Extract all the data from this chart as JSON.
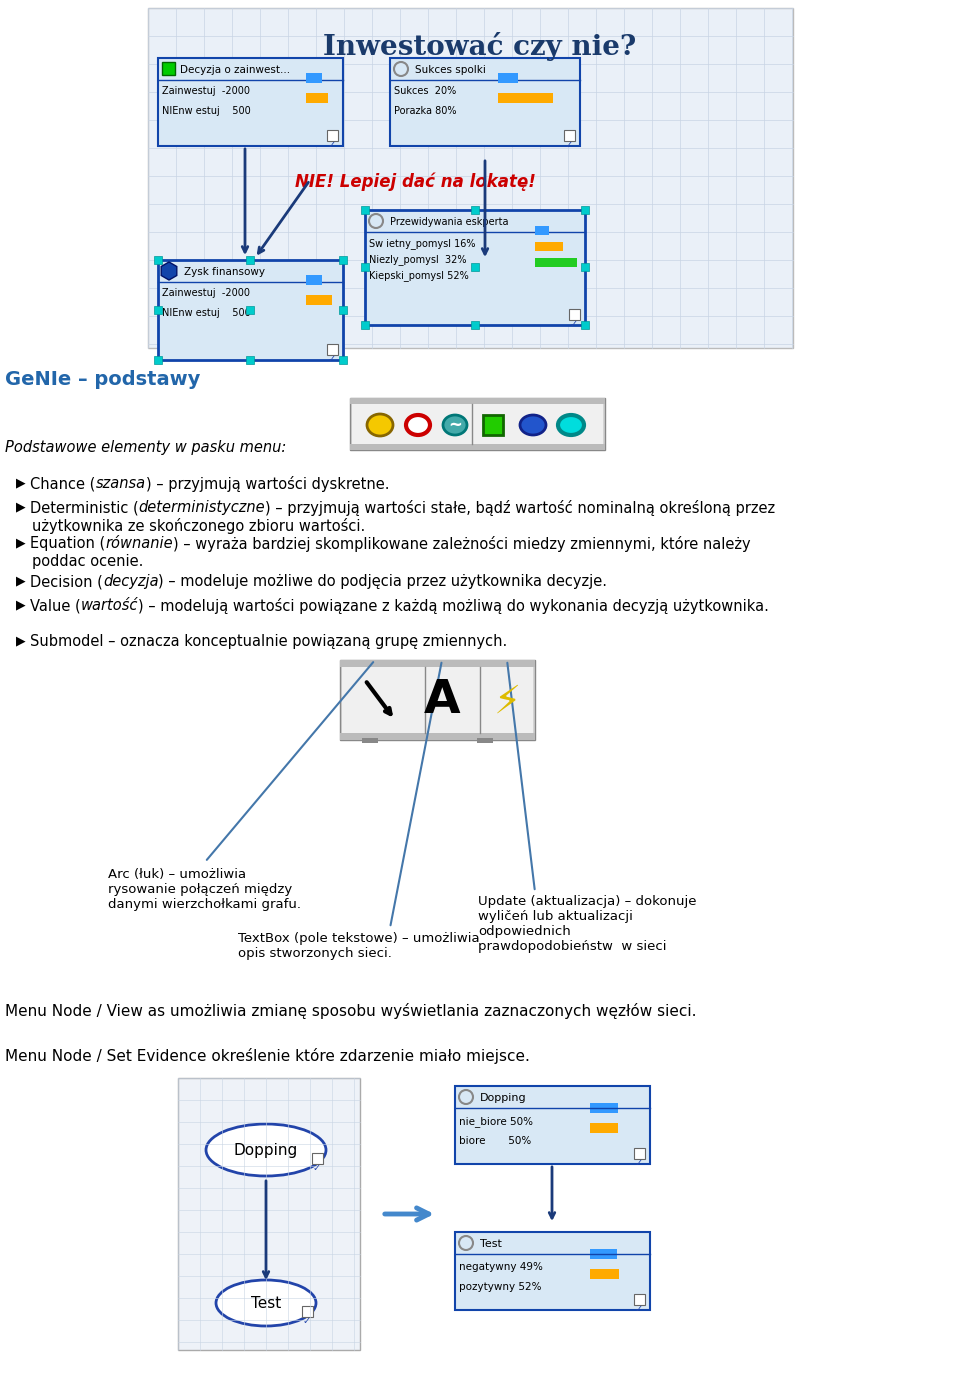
{
  "title": "Inwestować czy nie?",
  "title_color": "#1a3a6b",
  "section2_title": "GeNIe – podstawy",
  "section2_color": "#2266aa",
  "menu_text": "Podstawowe elementy w pasku menu:",
  "bullet_items": [
    [
      "Chance (",
      "szansa",
      ") – przyjmują wartości dyskretne."
    ],
    [
      "Deterministic (",
      "deterministyczne",
      ") – przyjmują wartości stałe, bądź wartość nominalną określoną przez\nużytkownika ze skończonego zbioru wartości."
    ],
    [
      "Equation (",
      "równanie",
      ") – wyraża bardziej skomplikowane zależności miedzy zmiennymi, które należy\npoddac ocenie."
    ],
    [
      "Decision (",
      "decyzja",
      ") – modeluje możliwe do podjęcia przez użytkownika decyzje."
    ],
    [
      "Value (",
      "wartość",
      ") – modelują wartości powiązane z każdą możliwą do wykonania decyzją użytkownika."
    ],
    [
      "Submodel – oznacza konceptualnie powiązaną grupę zmiennych.",
      "",
      ""
    ]
  ],
  "arc_text": "Arc (łuk) – umożliwia\nrysowanie połączeń między\ndanymi wierzchołkami grafu.",
  "textbox_text": "TextBox (pole tekstowe) – umożliwia\nopis stworzonych sieci.",
  "update_text": "Update (aktualizacja) – dokonuje\nwyličeń lub aktualizacji\nodpowiednich\nprawdopodobieństw  w sieci",
  "menu_node_view": "Menu Node / View as umożliwia zmianę sposobu wyświetlania zaznaczonych węzłów sieci.",
  "menu_node_set": "Menu Node / Set Evidence określenie które zdarzenie miało miejsce.",
  "bg_color": "#ffffff"
}
